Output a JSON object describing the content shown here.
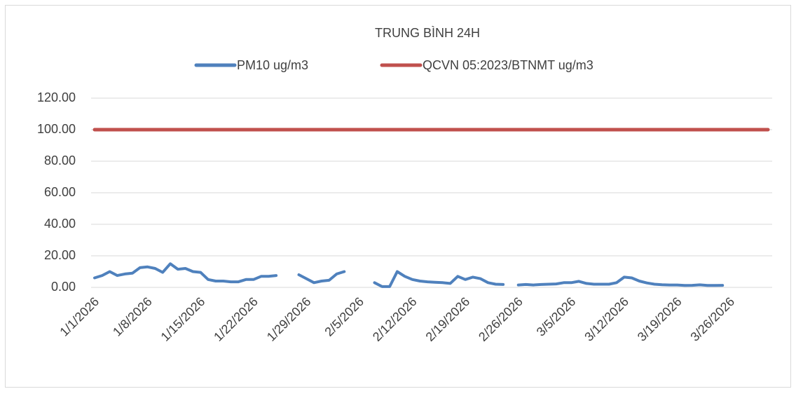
{
  "chart_data": {
    "type": "line",
    "title": "TRUNG BÌNH 24H",
    "categories": [
      "1/1/2026",
      null,
      null,
      null,
      null,
      null,
      null,
      "1/8/2026",
      null,
      null,
      null,
      null,
      null,
      null,
      "1/15/2026",
      null,
      null,
      null,
      null,
      null,
      null,
      "1/22/2026",
      null,
      null,
      null,
      null,
      null,
      null,
      "1/29/2026",
      null,
      null,
      null,
      null,
      null,
      null,
      "2/5/2026",
      null,
      null,
      null,
      null,
      null,
      null,
      "2/12/2026",
      null,
      null,
      null,
      null,
      null,
      null,
      "2/19/2026",
      null,
      null,
      null,
      null,
      null,
      null,
      "2/26/2026",
      null,
      null,
      null,
      null,
      null,
      null,
      "3/5/2026",
      null,
      null,
      null,
      null,
      null,
      null,
      "3/12/2026",
      null,
      null,
      null,
      null,
      null,
      null,
      "3/19/2026",
      null,
      null,
      null,
      null,
      null,
      null,
      "3/26/2026",
      null,
      null,
      null,
      null,
      null
    ],
    "series": [
      {
        "name": "PM10 ug/m3",
        "color": "#4f81bd",
        "values": [
          6,
          7.5,
          10,
          7.5,
          8.5,
          9,
          12.5,
          13,
          12,
          9.5,
          15,
          11.5,
          12,
          10,
          9.5,
          5,
          4,
          4,
          3.5,
          3.5,
          5,
          5,
          7,
          7,
          7.5,
          null,
          null,
          8,
          5.5,
          3,
          4,
          4.5,
          8.5,
          10,
          null,
          null,
          null,
          3,
          0.5,
          0.5,
          10,
          7,
          5,
          4,
          3.5,
          3.2,
          3,
          2.5,
          7,
          5,
          6.5,
          5.5,
          3,
          2,
          1.8,
          null,
          1.5,
          1.8,
          1.5,
          1.8,
          2,
          2.2,
          3,
          3,
          3.8,
          2.5,
          2,
          2,
          2,
          3,
          6.5,
          6,
          4,
          2.8,
          2,
          1.7,
          1.5,
          1.5,
          1.2,
          1.3,
          1.6,
          1.2,
          1.2,
          1.3,
          null,
          null,
          null,
          null,
          null,
          null
        ]
      },
      {
        "name": "QCVN 05:2023/BTNMT ug/m3",
        "color": "#c0504d",
        "values": [
          100,
          100,
          100,
          100,
          100,
          100,
          100,
          100,
          100,
          100,
          100,
          100,
          100,
          100,
          100,
          100,
          100,
          100,
          100,
          100,
          100,
          100,
          100,
          100,
          100,
          100,
          100,
          100,
          100,
          100,
          100,
          100,
          100,
          100,
          100,
          100,
          100,
          100,
          100,
          100,
          100,
          100,
          100,
          100,
          100,
          100,
          100,
          100,
          100,
          100,
          100,
          100,
          100,
          100,
          100,
          100,
          100,
          100,
          100,
          100,
          100,
          100,
          100,
          100,
          100,
          100,
          100,
          100,
          100,
          100,
          100,
          100,
          100,
          100,
          100,
          100,
          100,
          100,
          100,
          100,
          100,
          100,
          100,
          100,
          100,
          100,
          100,
          100,
          100,
          100
        ]
      }
    ],
    "ylim": [
      0,
      120
    ],
    "yticks": [
      {
        "value": 0,
        "label": "0.00"
      },
      {
        "value": 20,
        "label": "20.00"
      },
      {
        "value": 40,
        "label": "40.00"
      },
      {
        "value": 60,
        "label": "60.00"
      },
      {
        "value": 80,
        "label": "80.00"
      },
      {
        "value": 100,
        "label": "100.00"
      },
      {
        "value": 120,
        "label": "120.00"
      }
    ],
    "grid": true,
    "legend": "top"
  }
}
